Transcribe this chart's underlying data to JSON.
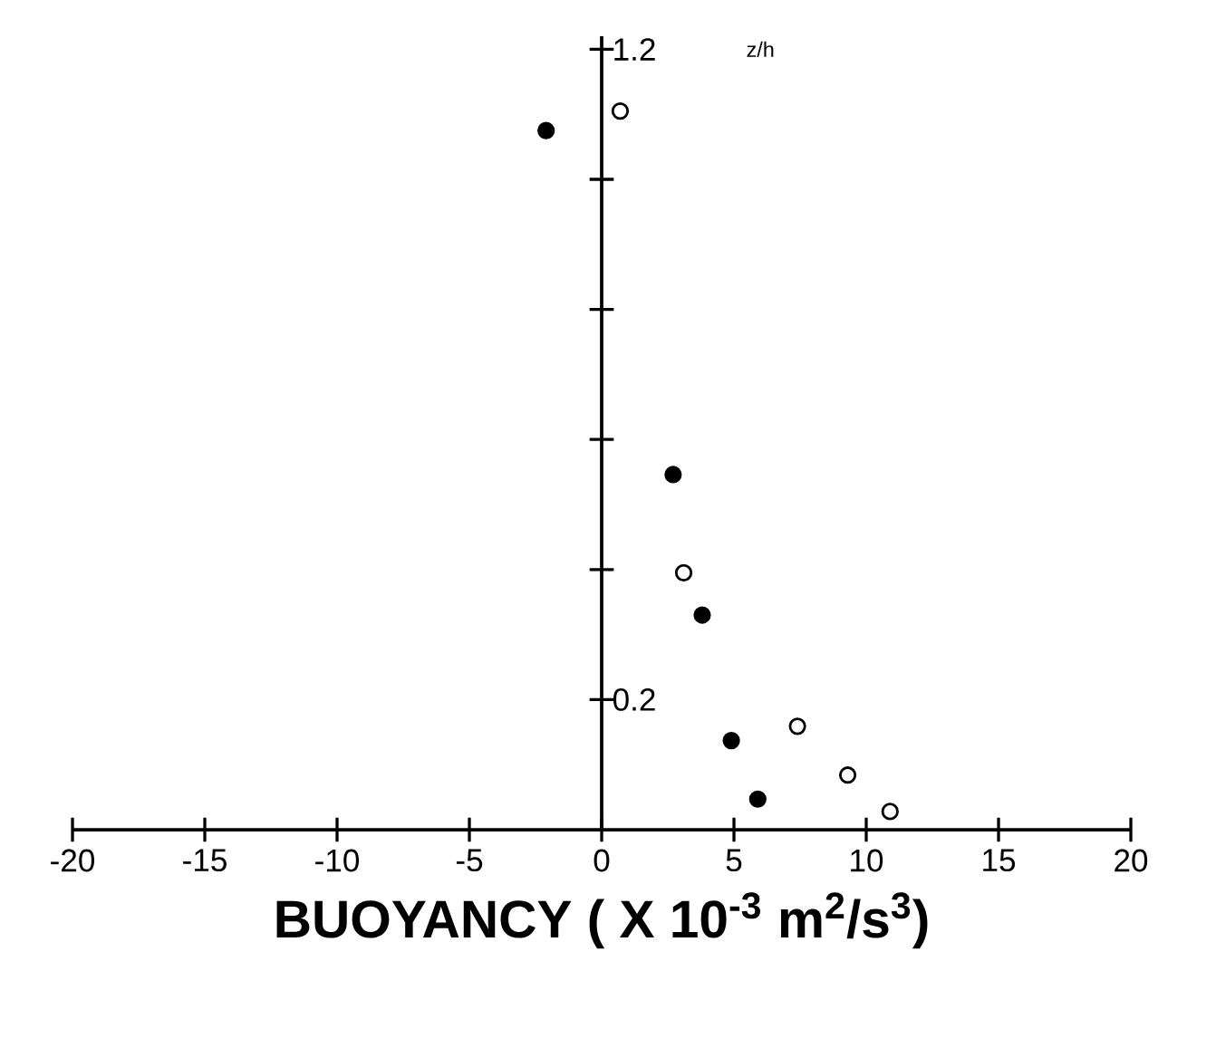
{
  "chart_data": {
    "type": "scatter",
    "xlabel": "BUOYANCY ( X 10$^{-3}$ m$^{2}$/s$^{3}$)",
    "ylabel": "z/h",
    "series": [
      {
        "color": "#000000",
        "x": [
          -2.1,
          2.7,
          3.8,
          4.9,
          5.9
        ],
        "values": [
          1.075,
          0.546,
          0.33,
          0.137,
          0.047
        ]
      },
      {
        "color": "#ffffff",
        "x": [
          0.7,
          3.1,
          7.4,
          9.3,
          10.9
        ],
        "values": [
          1.105,
          0.395,
          0.159,
          0.084,
          0.028
        ]
      }
    ],
    "marker": "circle",
    "grid": false,
    "xlim": [
      -20,
      20
    ],
    "xticks": [
      -20,
      -15,
      -10,
      -5,
      0,
      5,
      10,
      15,
      20
    ],
    "ylim": [
      0,
      1.22
    ],
    "yticks": [
      0.2,
      {
        "value": 0.4,
        "label": null
      },
      {
        "value": 0.6,
        "label": null
      },
      {
        "value": 0.8,
        "label": null
      },
      {
        "value": 1.0,
        "label": null
      },
      1.2
    ]
  }
}
